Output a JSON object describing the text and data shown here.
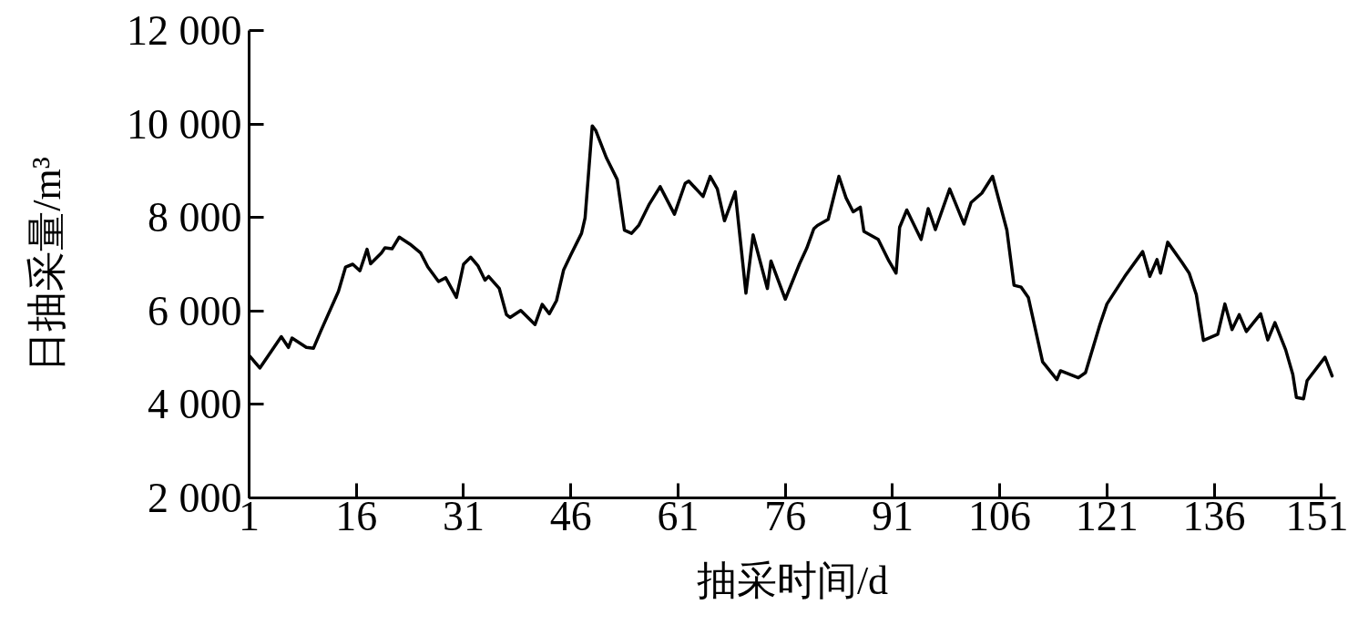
{
  "chart_data": {
    "type": "line",
    "xlabel": "抽采时间/d",
    "ylabel": "日抽采量/m³",
    "x": [
      1,
      2.5,
      5.5,
      6.5,
      7,
      9,
      10,
      11,
      13.5,
      14.5,
      15.5,
      16.5,
      17.5,
      18,
      19.5,
      20,
      21,
      22,
      23.5,
      25,
      26,
      27.5,
      28.5,
      30,
      31,
      32,
      33,
      34,
      34.5,
      36,
      37,
      37.5,
      39,
      41,
      42,
      43,
      44,
      45,
      46,
      47.5,
      48,
      49,
      49.5,
      51,
      52.5,
      53.5,
      54.5,
      55.5,
      57,
      58.5,
      60.5,
      62,
      62.5,
      64.5,
      65.5,
      66.5,
      67.5,
      69,
      70.5,
      71.5,
      73.5,
      74,
      76,
      78,
      79,
      80,
      80.5,
      82,
      83.5,
      84.5,
      85.5,
      86.5,
      87,
      89,
      90.5,
      91.5,
      92,
      93,
      95,
      96,
      97,
      99,
      101,
      102,
      103.5,
      105,
      107,
      108,
      109,
      110,
      112,
      114,
      114.5,
      117,
      118,
      120,
      121,
      123.5,
      126,
      127,
      128,
      128.5,
      129.5,
      131.5,
      132.5,
      133.5,
      134.5,
      136.5,
      137.5,
      138.5,
      139.5,
      140.5,
      142.5,
      143.5,
      144.5,
      146,
      147,
      147.5,
      148.5,
      149,
      151.5,
      152.5
    ],
    "series": [
      {
        "color": "#000000",
        "values": [
          5050,
          4780,
          5450,
          5220,
          5420,
          5220,
          5200,
          5560,
          6420,
          6940,
          7000,
          6860,
          7320,
          7010,
          7240,
          7350,
          7330,
          7580,
          7430,
          7240,
          6940,
          6630,
          6710,
          6290,
          7000,
          7150,
          6970,
          6660,
          6740,
          6480,
          5920,
          5860,
          6010,
          5710,
          6140,
          5940,
          6220,
          6880,
          7200,
          7660,
          7990,
          9960,
          9860,
          9270,
          8810,
          7730,
          7660,
          7830,
          8290,
          8660,
          8070,
          8730,
          8780,
          8450,
          8880,
          8610,
          7930,
          8550,
          6380,
          7630,
          6480,
          7070,
          6250,
          7010,
          7340,
          7760,
          7830,
          7960,
          8880,
          8420,
          8120,
          8220,
          7700,
          7530,
          7070,
          6810,
          7790,
          8160,
          7530,
          8190,
          7740,
          8610,
          7860,
          8320,
          8520,
          8880,
          7730,
          6550,
          6510,
          6290,
          4910,
          4530,
          4720,
          4570,
          4680,
          5700,
          6150,
          6740,
          7270,
          6740,
          7100,
          6810,
          7470,
          7040,
          6810,
          6350,
          5370,
          5500,
          6150,
          5600,
          5920,
          5560,
          5940,
          5380,
          5750,
          5170,
          4640,
          4150,
          4120,
          4510,
          5010,
          4610
        ]
      }
    ],
    "xlim": [
      1,
      153
    ],
    "xticks": [
      1,
      16,
      31,
      46,
      61,
      76,
      91,
      106,
      121,
      136,
      151
    ],
    "ylim": [
      2000,
      12000
    ],
    "yticks": [
      {
        "value": 2000,
        "label": "2 000"
      },
      {
        "value": 4000,
        "label": "4 000"
      },
      {
        "value": 6000,
        "label": "6 000"
      },
      {
        "value": 8000,
        "label": "8 000"
      },
      {
        "value": 10000,
        "label": "10 000"
      },
      {
        "value": 12000,
        "label": "12 000"
      }
    ],
    "grid": false,
    "marker": "none",
    "line_style": "solid"
  }
}
